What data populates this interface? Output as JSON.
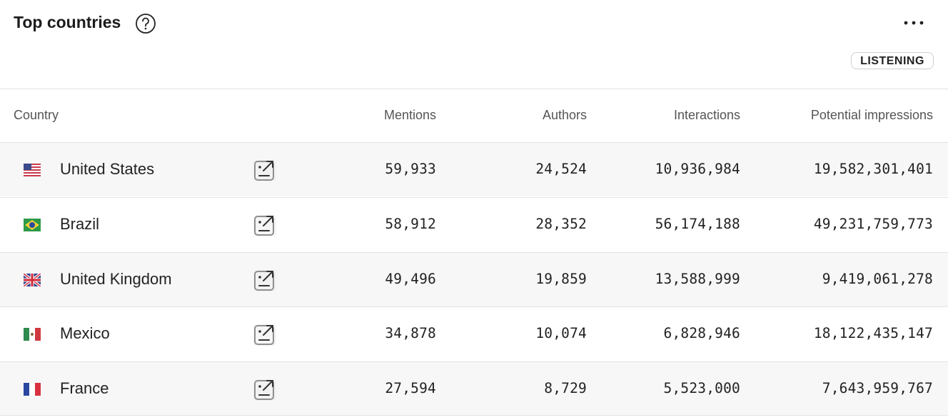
{
  "header": {
    "title": "Top countries",
    "badge": "LISTENING"
  },
  "table": {
    "columns": [
      "Country",
      "Mentions",
      "Authors",
      "Interactions",
      "Potential impressions"
    ],
    "rows": [
      [
        "United States",
        "59,933",
        "24,524",
        "10,936,984",
        "19,582,301,401"
      ],
      [
        "Brazil",
        "58,912",
        "28,352",
        "56,174,188",
        "49,231,759,773"
      ],
      [
        "United Kingdom",
        "49,496",
        "19,859",
        "13,588,999",
        "9,419,061,278"
      ],
      [
        "Mexico",
        "34,878",
        "10,074",
        "6,828,946",
        "18,122,435,147"
      ],
      [
        "France",
        "27,594",
        "8,729",
        "5,523,000",
        "7,643,959,767"
      ]
    ]
  }
}
